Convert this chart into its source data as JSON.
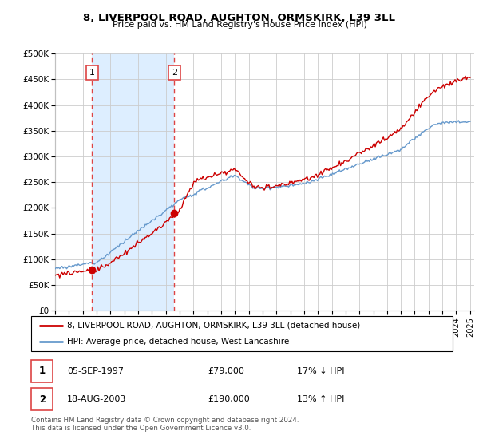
{
  "title": "8, LIVERPOOL ROAD, AUGHTON, ORMSKIRK, L39 3LL",
  "subtitle": "Price paid vs. HM Land Registry's House Price Index (HPI)",
  "legend_line1": "8, LIVERPOOL ROAD, AUGHTON, ORMSKIRK, L39 3LL (detached house)",
  "legend_line2": "HPI: Average price, detached house, West Lancashire",
  "sale1_label": "1",
  "sale1_date": "05-SEP-1997",
  "sale1_price": "£79,000",
  "sale1_hpi": "17% ↓ HPI",
  "sale2_label": "2",
  "sale2_date": "18-AUG-2003",
  "sale2_price": "£190,000",
  "sale2_hpi": "13% ↑ HPI",
  "footer": "Contains HM Land Registry data © Crown copyright and database right 2024.\nThis data is licensed under the Open Government Licence v3.0.",
  "hpi_color": "#6699cc",
  "price_color": "#cc0000",
  "vline_color": "#dd4444",
  "shade_color": "#ddeeff",
  "grid_color": "#cccccc",
  "background_color": "#ffffff",
  "ylim": [
    0,
    500000
  ],
  "yticks": [
    0,
    50000,
    100000,
    150000,
    200000,
    250000,
    300000,
    350000,
    400000,
    450000,
    500000
  ],
  "sale1_year": 1997.67,
  "sale1_value": 79000,
  "sale2_year": 2003.62,
  "sale2_value": 190000,
  "xmin": 1995,
  "xmax": 2025.3
}
